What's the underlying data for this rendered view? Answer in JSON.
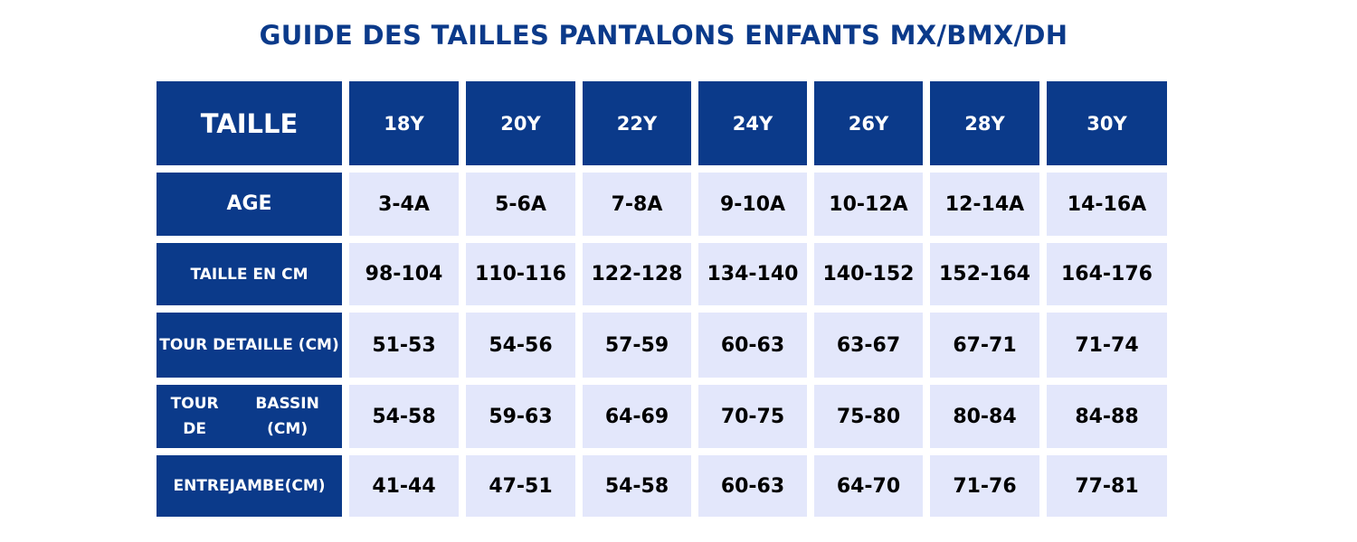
{
  "title": "GUIDE DES TAILLES PANTALONS ENFANTS MX/BMX/DH",
  "table": {
    "corner": "TAILLE",
    "columns": [
      "18Y",
      "20Y",
      "22Y",
      "24Y",
      "26Y",
      "28Y",
      "30Y"
    ],
    "rows": [
      {
        "label_lines": [
          "AGE"
        ],
        "values": [
          "3-4A",
          "5-6A",
          "7-8A",
          "9-10A",
          "10-12A",
          "12-14A",
          "14-16A"
        ]
      },
      {
        "label_lines": [
          "TAILLE EN CM"
        ],
        "values": [
          "98-104",
          "110-116",
          "122-128",
          "134-140",
          "140-152",
          "152-164",
          "164-176"
        ]
      },
      {
        "label_lines": [
          "TOUR DE",
          "TAILLE (CM)"
        ],
        "values": [
          "51-53",
          "54-56",
          "57-59",
          "60-63",
          "63-67",
          "67-71",
          "71-74"
        ]
      },
      {
        "label_lines": [
          "TOUR DE",
          "BASSIN (CM)"
        ],
        "values": [
          "54-58",
          "59-63",
          "64-69",
          "70-75",
          "75-80",
          "80-84",
          "84-88"
        ]
      },
      {
        "label_lines": [
          "ENTREJAMBE",
          "(CM)"
        ],
        "values": [
          "41-44",
          "47-51",
          "54-58",
          "60-63",
          "64-70",
          "71-76",
          "77-81"
        ]
      }
    ]
  },
  "colors": {
    "header": "#0b3a8a",
    "cell": "#e3e7fb"
  }
}
